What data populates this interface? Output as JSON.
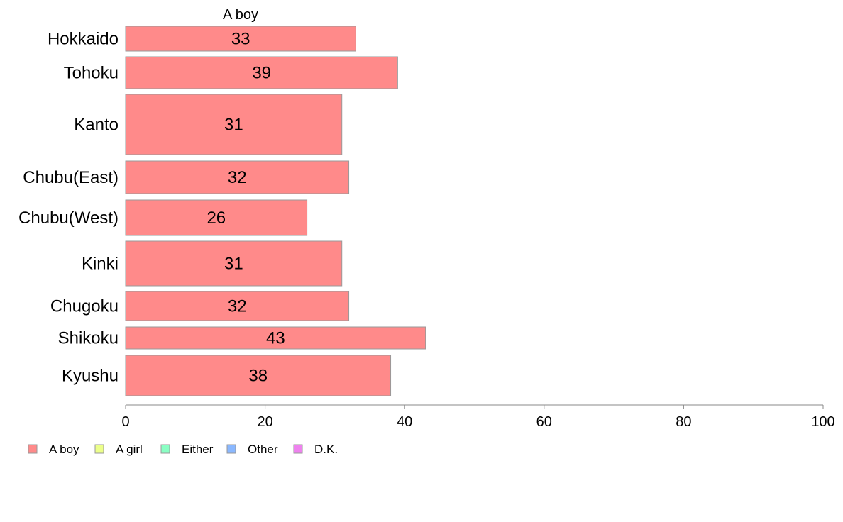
{
  "chart_data": {
    "type": "bar",
    "orientation": "horizontal",
    "title": "A boy",
    "categories": [
      "Hokkaido",
      "Tohoku",
      "Kanto",
      "Chubu(East)",
      "Chubu(West)",
      "Kinki",
      "Chugoku",
      "Shikoku",
      "Kyushu"
    ],
    "series": [
      {
        "name": "A boy",
        "values": [
          33,
          39,
          31,
          32,
          26,
          31,
          32,
          43,
          38
        ],
        "value_labels": [
          "33",
          "39",
          "31",
          "32",
          "26",
          "31",
          "32",
          "43",
          "38"
        ]
      }
    ],
    "xlim": [
      0,
      100
    ],
    "x_ticks": [
      0,
      20,
      40,
      60,
      80,
      100
    ],
    "x_tick_labels": [
      "0",
      "20",
      "40",
      "60",
      "80",
      "100"
    ],
    "grid": false,
    "legend": {
      "placement": "bottom-left",
      "entries": [
        {
          "label": "A boy",
          "color": "#ff8a8a"
        },
        {
          "label": "A girl",
          "color": "#ecff8a"
        },
        {
          "label": "Either",
          "color": "#8affc4"
        },
        {
          "label": "Other",
          "color": "#8ab8ff"
        },
        {
          "label": "D.K.",
          "color": "#ee82ee"
        }
      ]
    },
    "colors": {
      "bar_fill": "#ff8a8a",
      "bar_stroke": "#999999",
      "axis": "#888888"
    }
  }
}
